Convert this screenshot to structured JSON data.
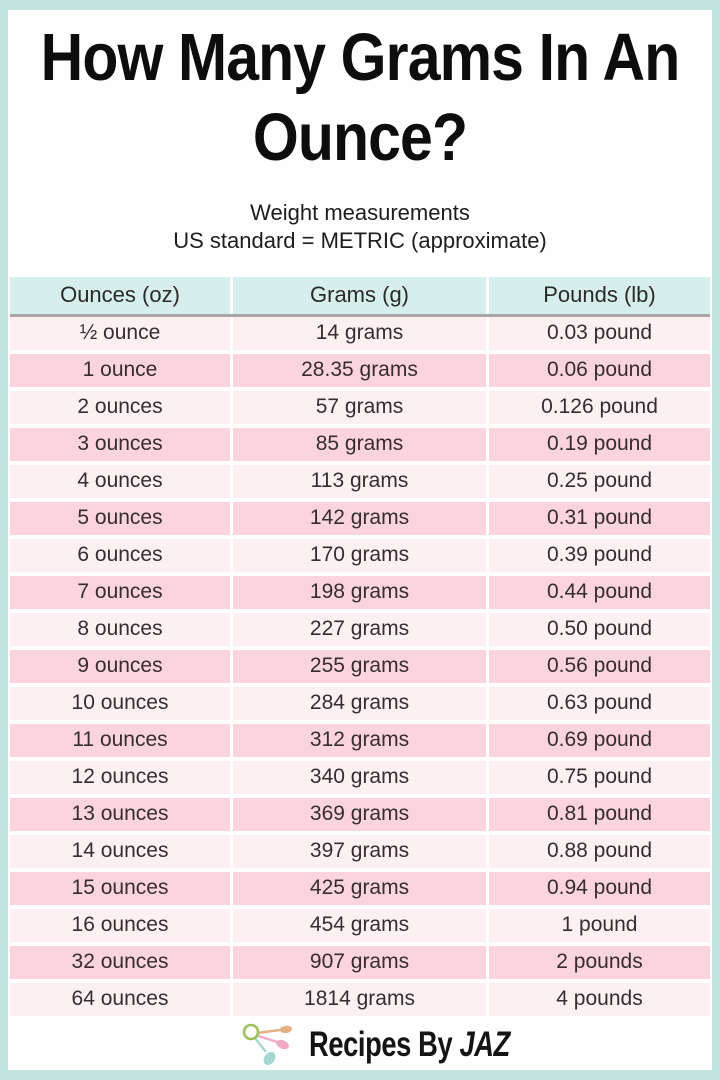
{
  "header": {
    "title": "How Many Grams In An Ounce?",
    "subtitle_lines": [
      "Weight measurements",
      "US standard = METRIC (approximate)"
    ]
  },
  "chart_data": {
    "type": "table",
    "title": "How Many Grams In An Ounce?",
    "subtitle": "Weight measurements — US standard = METRIC (approximate)",
    "columns": [
      "Ounces (oz)",
      "Grams (g)",
      "Pounds (lb)"
    ],
    "rows": [
      [
        "½ ounce",
        "14 grams",
        "0.03 pound"
      ],
      [
        "1 ounce",
        "28.35 grams",
        "0.06 pound"
      ],
      [
        "2 ounces",
        "57 grams",
        "0.126 pound"
      ],
      [
        "3 ounces",
        "85 grams",
        "0.19 pound"
      ],
      [
        "4 ounces",
        "113 grams",
        "0.25 pound"
      ],
      [
        "5 ounces",
        "142 grams",
        "0.31 pound"
      ],
      [
        "6 ounces",
        "170 grams",
        "0.39 pound"
      ],
      [
        "7 ounces",
        "198 grams",
        "0.44 pound"
      ],
      [
        "8 ounces",
        "227 grams",
        "0.50 pound"
      ],
      [
        "9 ounces",
        "255 grams",
        "0.56 pound"
      ],
      [
        "10 ounces",
        "284 grams",
        "0.63 pound"
      ],
      [
        "11 ounces",
        "312 grams",
        "0.69 pound"
      ],
      [
        "12 ounces",
        "340 grams",
        "0.75 pound"
      ],
      [
        "13 ounces",
        "369 grams",
        "0.81 pound"
      ],
      [
        "14 ounces",
        "397 grams",
        "0.88 pound"
      ],
      [
        "15 ounces",
        "425 grams",
        "0.94 pound"
      ],
      [
        "16 ounces",
        "454 grams",
        "1 pound"
      ],
      [
        "32 ounces",
        "907 grams",
        "2 pounds"
      ],
      [
        "64 ounces",
        "1814 grams",
        "4 pounds"
      ]
    ]
  },
  "footer": {
    "brand_prefix": "Recipes By",
    "brand_suffix": "JAZ",
    "logo_icon": "measuring-spoons-icon"
  },
  "colors": {
    "frame_border": "#c2e5e0",
    "header_row_bg": "#d6eeec",
    "row_light_bg": "#fdf0f2",
    "row_dark_bg": "#fbd4dd",
    "header_underline": "#a7a7a7",
    "spoon_ring": "#9cc25a",
    "spoon_tan": "#e3af85",
    "spoon_pink": "#f0a9c6",
    "spoon_teal": "#a6d8d3"
  }
}
